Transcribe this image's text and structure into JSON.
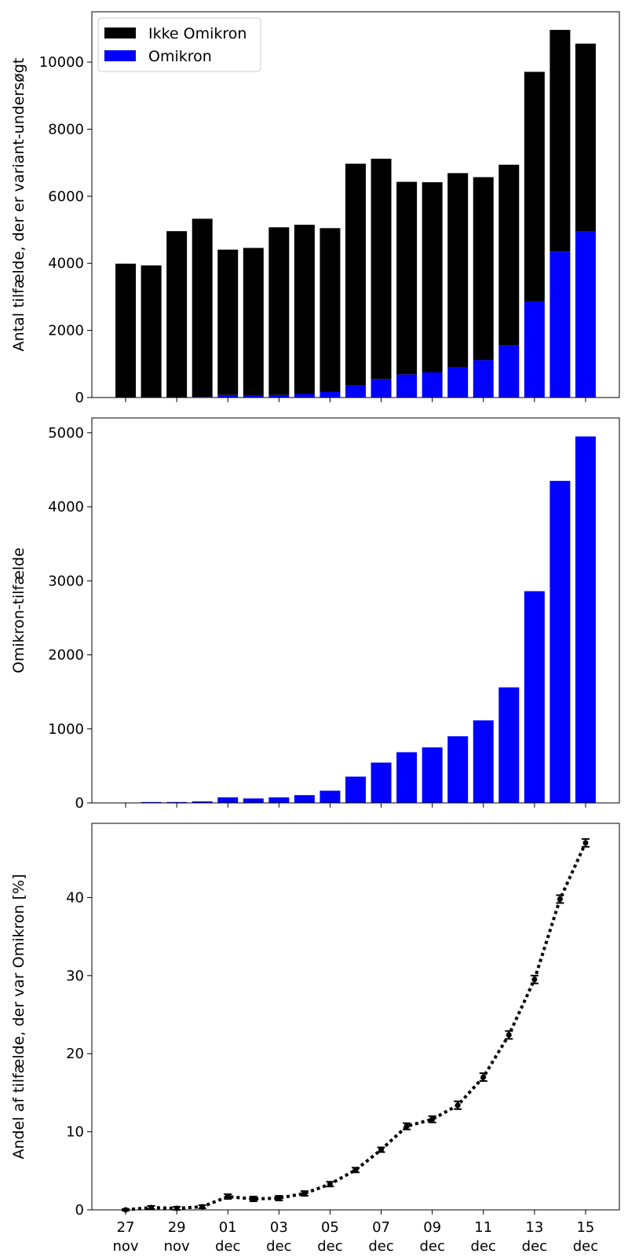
{
  "chart_data": [
    {
      "type": "bar",
      "stacked": true,
      "categories": [
        "27 nov",
        "28 nov",
        "29 nov",
        "30 nov",
        "01 dec",
        "02 dec",
        "03 dec",
        "04 dec",
        "05 dec",
        "06 dec",
        "07 dec",
        "08 dec",
        "09 dec",
        "10 dec",
        "11 dec",
        "12 dec",
        "13 dec",
        "14 dec",
        "15 dec"
      ],
      "x_tick_labels": [
        {
          "index": 0,
          "day": "27",
          "month": "nov"
        },
        {
          "index": 2,
          "day": "29",
          "month": "nov"
        },
        {
          "index": 4,
          "day": "01",
          "month": "dec"
        },
        {
          "index": 6,
          "day": "03",
          "month": "dec"
        },
        {
          "index": 8,
          "day": "05",
          "month": "dec"
        },
        {
          "index": 10,
          "day": "07",
          "month": "dec"
        },
        {
          "index": 12,
          "day": "09",
          "month": "dec"
        },
        {
          "index": 14,
          "day": "11",
          "month": "dec"
        },
        {
          "index": 16,
          "day": "13",
          "month": "dec"
        },
        {
          "index": 18,
          "day": "15",
          "month": "dec"
        }
      ],
      "series": [
        {
          "name": "Omikron",
          "color": "#0000ff",
          "values": [
            1,
            12,
            12,
            20,
            75,
            60,
            75,
            105,
            165,
            355,
            545,
            685,
            750,
            900,
            1115,
            1560,
            2860,
            4350,
            4950
          ]
        },
        {
          "name": "Ikke Omikron",
          "color": "#000000",
          "values": [
            3989,
            3928,
            4948,
            5310,
            4335,
            4400,
            5000,
            5045,
            4885,
            6615,
            6575,
            5745,
            5670,
            5790,
            5455,
            5380,
            6850,
            6610,
            5600
          ]
        }
      ],
      "totals": [
        3990,
        3940,
        4960,
        5330,
        4410,
        4460,
        5075,
        5150,
        5050,
        6970,
        7120,
        6430,
        6420,
        6690,
        6570,
        6940,
        9710,
        10960,
        10550
      ],
      "xlabel": "",
      "ylabel": "Antal tilfælde, der er variant-undersøgt",
      "ylim": [
        0,
        11500
      ],
      "yticks": [
        0,
        2000,
        4000,
        6000,
        8000,
        10000
      ],
      "legend": {
        "position": "top-left",
        "entries": [
          "Ikke Omikron",
          "Omikron"
        ]
      }
    },
    {
      "type": "bar",
      "categories": [
        "27 nov",
        "28 nov",
        "29 nov",
        "30 nov",
        "01 dec",
        "02 dec",
        "03 dec",
        "04 dec",
        "05 dec",
        "06 dec",
        "07 dec",
        "08 dec",
        "09 dec",
        "10 dec",
        "11 dec",
        "12 dec",
        "13 dec",
        "14 dec",
        "15 dec"
      ],
      "series": [
        {
          "name": "Omikron",
          "color": "#0000ff",
          "values": [
            1,
            12,
            12,
            20,
            75,
            60,
            75,
            105,
            165,
            355,
            545,
            685,
            750,
            900,
            1115,
            1560,
            2860,
            4350,
            4950
          ]
        }
      ],
      "xlabel": "",
      "ylabel": "Omikron-tilfælde",
      "ylim": [
        0,
        5200
      ],
      "yticks": [
        0,
        1000,
        2000,
        3000,
        4000,
        5000
      ]
    },
    {
      "type": "line",
      "categories": [
        "27 nov",
        "28 nov",
        "29 nov",
        "30 nov",
        "01 dec",
        "02 dec",
        "03 dec",
        "04 dec",
        "05 dec",
        "06 dec",
        "07 dec",
        "08 dec",
        "09 dec",
        "10 dec",
        "11 dec",
        "12 dec",
        "13 dec",
        "14 dec",
        "15 dec"
      ],
      "series": [
        {
          "name": "Andel Omikron",
          "color": "#000000",
          "line_style": "dotted",
          "values": [
            0.0,
            0.3,
            0.2,
            0.4,
            1.7,
            1.4,
            1.5,
            2.1,
            3.3,
            5.1,
            7.7,
            10.7,
            11.6,
            13.4,
            17.0,
            22.4,
            29.5,
            39.8,
            47.0
          ],
          "errors": [
            0.1,
            0.2,
            0.2,
            0.2,
            0.3,
            0.3,
            0.3,
            0.3,
            0.3,
            0.3,
            0.3,
            0.4,
            0.4,
            0.5,
            0.5,
            0.5,
            0.5,
            0.5,
            0.5
          ]
        }
      ],
      "xlabel": "",
      "ylabel": "Andel af tilfælde, der var Omikron [%]",
      "ylim": [
        0,
        49.5
      ],
      "yticks": [
        0,
        10,
        20,
        30,
        40
      ]
    }
  ]
}
